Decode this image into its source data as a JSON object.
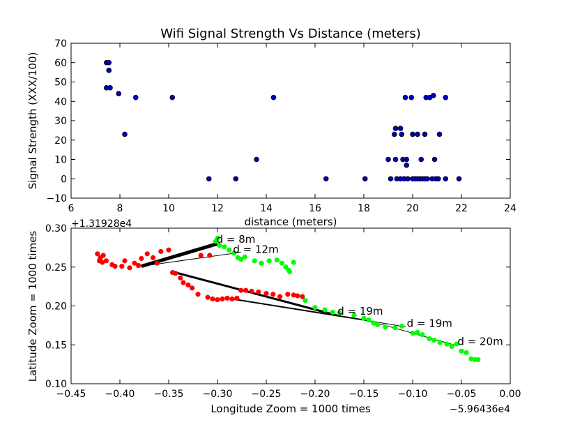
{
  "chart_data": [
    {
      "type": "scatter",
      "title": "Wifi Signal Strength Vs Distance (meters)",
      "xlabel": "distance (meters)",
      "ylabel": "Signal Strength (XXX/100)",
      "xlim": [
        6,
        24
      ],
      "ylim": [
        -10,
        70
      ],
      "xticks": [
        "6",
        "8",
        "10",
        "12",
        "14",
        "16",
        "18",
        "20",
        "22",
        "24"
      ],
      "yticks": [
        "−10",
        "0",
        "10",
        "20",
        "30",
        "40",
        "50",
        "60",
        "70"
      ],
      "grid": false,
      "marker_color": "#0000bf",
      "points": [
        [
          7.45,
          60
        ],
        [
          7.55,
          60
        ],
        [
          7.55,
          56
        ],
        [
          7.45,
          47
        ],
        [
          7.6,
          47
        ],
        [
          7.95,
          44
        ],
        [
          8.2,
          23
        ],
        [
          8.65,
          42
        ],
        [
          10.15,
          42
        ],
        [
          11.65,
          0
        ],
        [
          12.75,
          0
        ],
        [
          13.6,
          10
        ],
        [
          14.3,
          42
        ],
        [
          16.45,
          0
        ],
        [
          18.05,
          0
        ],
        [
          19.0,
          10
        ],
        [
          19.1,
          0
        ],
        [
          19.25,
          23
        ],
        [
          19.3,
          26
        ],
        [
          19.3,
          10
        ],
        [
          19.35,
          0
        ],
        [
          19.5,
          26
        ],
        [
          19.5,
          0
        ],
        [
          19.55,
          23
        ],
        [
          19.6,
          10
        ],
        [
          19.65,
          0
        ],
        [
          19.7,
          42
        ],
        [
          19.75,
          7
        ],
        [
          19.75,
          10
        ],
        [
          19.8,
          0
        ],
        [
          19.95,
          42
        ],
        [
          20.0,
          23
        ],
        [
          20.0,
          0
        ],
        [
          20.1,
          0
        ],
        [
          20.2,
          23
        ],
        [
          20.2,
          0
        ],
        [
          20.3,
          0
        ],
        [
          20.35,
          10
        ],
        [
          20.4,
          0
        ],
        [
          20.5,
          23
        ],
        [
          20.5,
          0
        ],
        [
          20.55,
          42
        ],
        [
          20.6,
          0
        ],
        [
          20.7,
          42
        ],
        [
          20.8,
          0
        ],
        [
          20.85,
          43
        ],
        [
          20.9,
          10
        ],
        [
          20.95,
          0
        ],
        [
          21.05,
          0
        ],
        [
          21.1,
          23
        ],
        [
          21.35,
          42
        ],
        [
          21.35,
          0
        ],
        [
          21.9,
          0
        ]
      ]
    },
    {
      "type": "scatter",
      "title": "",
      "xlabel": "Longitude Zoom = 1000 times",
      "ylabel": "Latitude Zoom = 1000 times",
      "xlim": [
        -0.45,
        0.0
      ],
      "ylim": [
        0.1,
        0.3
      ],
      "xticks": [
        "−0.45",
        "−0.40",
        "−0.35",
        "−0.30",
        "−0.25",
        "−0.20",
        "−0.15",
        "−0.10",
        "−0.05",
        "0.00"
      ],
      "yticks": [
        "0.10",
        "0.15",
        "0.20",
        "0.25",
        "0.30"
      ],
      "x_offset_text": "−5.96436e4",
      "y_offset_text": "+1.31928e4",
      "grid": false,
      "series": [
        {
          "color": "#ff0000",
          "points": [
            [
              -0.423,
              0.267
            ],
            [
              -0.42,
              0.262
            ],
            [
              -0.417,
              0.265
            ],
            [
              -0.421,
              0.258
            ],
            [
              -0.418,
              0.256
            ],
            [
              -0.414,
              0.258
            ],
            [
              -0.408,
              0.253
            ],
            [
              -0.405,
              0.251
            ],
            [
              -0.398,
              0.251
            ],
            [
              -0.395,
              0.258
            ],
            [
              -0.39,
              0.249
            ],
            [
              -0.385,
              0.255
            ],
            [
              -0.381,
              0.252
            ],
            [
              -0.378,
              0.261
            ],
            [
              -0.372,
              0.267
            ],
            [
              -0.366,
              0.262
            ],
            [
              -0.362,
              0.255
            ],
            [
              -0.358,
              0.27
            ],
            [
              -0.35,
              0.272
            ],
            [
              -0.346,
              0.243
            ],
            [
              -0.343,
              0.242
            ],
            [
              -0.338,
              0.236
            ],
            [
              -0.335,
              0.23
            ],
            [
              -0.33,
              0.227
            ],
            [
              -0.326,
              0.223
            ],
            [
              -0.32,
              0.215
            ],
            [
              -0.31,
              0.211
            ],
            [
              -0.305,
              0.209
            ],
            [
              -0.3,
              0.208
            ],
            [
              -0.295,
              0.209
            ],
            [
              -0.29,
              0.21
            ],
            [
              -0.285,
              0.209
            ],
            [
              -0.28,
              0.21
            ],
            [
              -0.276,
              0.22
            ],
            [
              -0.271,
              0.22
            ],
            [
              -0.265,
              0.219
            ],
            [
              -0.258,
              0.218
            ],
            [
              -0.25,
              0.216
            ],
            [
              -0.243,
              0.215
            ],
            [
              -0.236,
              0.212
            ],
            [
              -0.228,
              0.215
            ],
            [
              -0.222,
              0.214
            ],
            [
              -0.218,
              0.213
            ],
            [
              -0.213,
              0.212
            ],
            [
              -0.308,
              0.265
            ],
            [
              -0.317,
              0.265
            ]
          ]
        },
        {
          "color": "#00ff00",
          "points": [
            [
              -0.302,
              0.283
            ],
            [
              -0.3,
              0.287
            ],
            [
              -0.298,
              0.278
            ],
            [
              -0.293,
              0.276
            ],
            [
              -0.288,
              0.272
            ],
            [
              -0.283,
              0.268
            ],
            [
              -0.279,
              0.262
            ],
            [
              -0.276,
              0.26
            ],
            [
              -0.272,
              0.263
            ],
            [
              -0.262,
              0.258
            ],
            [
              -0.255,
              0.255
            ],
            [
              -0.247,
              0.258
            ],
            [
              -0.239,
              0.259
            ],
            [
              -0.234,
              0.255
            ],
            [
              -0.23,
              0.25
            ],
            [
              -0.227,
              0.246
            ],
            [
              -0.226,
              0.244
            ],
            [
              -0.222,
              0.256
            ],
            [
              -0.21,
              0.207
            ],
            [
              -0.2,
              0.198
            ],
            [
              -0.19,
              0.195
            ],
            [
              -0.182,
              0.192
            ],
            [
              -0.175,
              0.191
            ],
            [
              -0.16,
              0.188
            ],
            [
              -0.15,
              0.184
            ],
            [
              -0.145,
              0.182
            ],
            [
              -0.14,
              0.178
            ],
            [
              -0.136,
              0.176
            ],
            [
              -0.128,
              0.173
            ],
            [
              -0.118,
              0.172
            ],
            [
              -0.111,
              0.174
            ],
            [
              -0.1,
              0.165
            ],
            [
              -0.095,
              0.166
            ],
            [
              -0.09,
              0.163
            ],
            [
              -0.083,
              0.158
            ],
            [
              -0.078,
              0.156
            ],
            [
              -0.072,
              0.153
            ],
            [
              -0.065,
              0.151
            ],
            [
              -0.06,
              0.148
            ],
            [
              -0.055,
              0.151
            ],
            [
              -0.05,
              0.142
            ],
            [
              -0.045,
              0.14
            ],
            [
              -0.04,
              0.132
            ],
            [
              -0.036,
              0.131
            ],
            [
              -0.033,
              0.131
            ]
          ]
        }
      ],
      "lines": [
        {
          "from": [
            -0.378,
            0.251
          ],
          "to": [
            -0.3,
            0.28
          ],
          "width": 5
        },
        {
          "from": [
            -0.378,
            0.251
          ],
          "to": [
            -0.276,
            0.269
          ],
          "width": 1
        },
        {
          "from": [
            -0.346,
            0.244
          ],
          "to": [
            -0.178,
            0.188
          ],
          "width": 3
        },
        {
          "from": [
            -0.29,
            0.21
          ],
          "to": [
            -0.145,
            0.181
          ],
          "width": 2
        },
        {
          "from": [
            -0.178,
            0.188
          ],
          "to": [
            -0.107,
            0.173
          ],
          "width": 1
        },
        {
          "from": [
            -0.145,
            0.181
          ],
          "to": [
            -0.055,
            0.149
          ],
          "width": 1
        }
      ],
      "annotations": [
        {
          "text": "d = 8m",
          "x": -0.301,
          "y": 0.281
        },
        {
          "text": "d = 12m",
          "x": -0.284,
          "y": 0.268
        },
        {
          "text": "d = 19m",
          "x": -0.177,
          "y": 0.189
        },
        {
          "text": "d = 19m",
          "x": -0.106,
          "y": 0.173
        },
        {
          "text": "d = 20m",
          "x": -0.054,
          "y": 0.15
        }
      ]
    }
  ]
}
